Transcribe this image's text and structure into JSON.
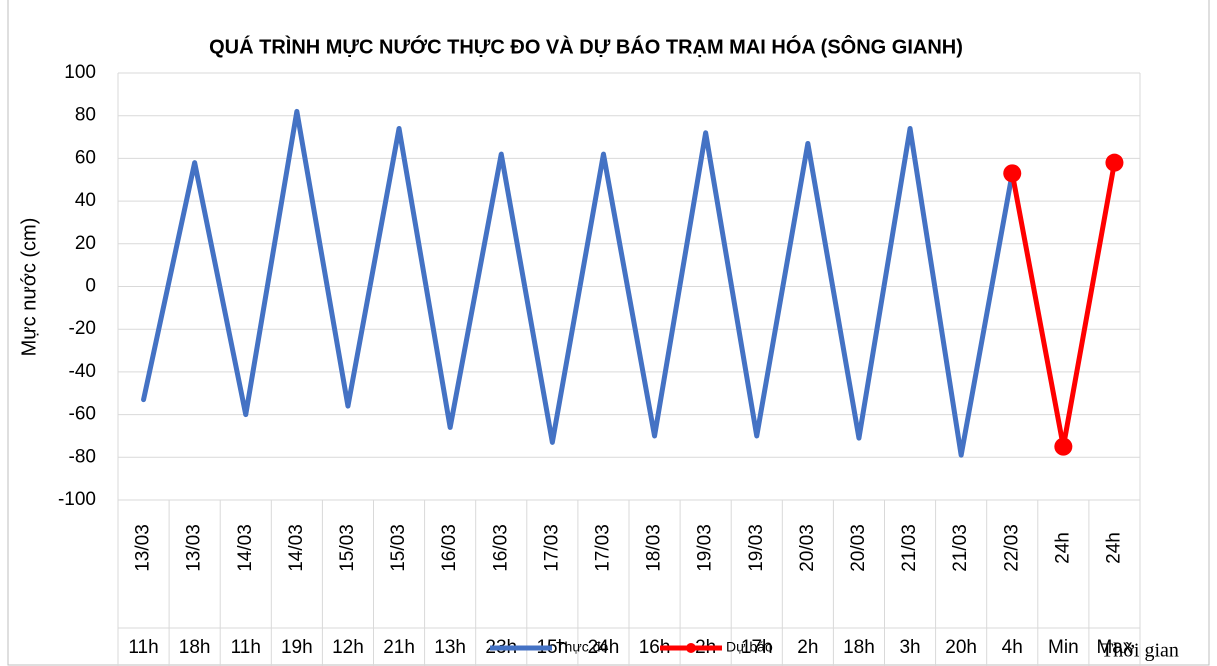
{
  "chart_data": {
    "type": "line",
    "title": "QUÁ TRÌNH MỰC NƯỚC THỰC ĐO VÀ DỰ BÁO TRẠM MAI HÓA (SÔNG GIANH)",
    "ylabel": "Mực nước (cm)",
    "xlabel": "Thời gian",
    "categories": [
      [
        "13/03",
        "11h"
      ],
      [
        "13/03",
        "18h"
      ],
      [
        "14/03",
        "11h"
      ],
      [
        "14/03",
        "19h"
      ],
      [
        "15/03",
        "12h"
      ],
      [
        "15/03",
        "21h"
      ],
      [
        "16/03",
        "13h"
      ],
      [
        "16/03",
        "23h"
      ],
      [
        "17/03",
        "15h"
      ],
      [
        "17/03",
        "24h"
      ],
      [
        "18/03",
        "16h"
      ],
      [
        "19/03",
        "2h"
      ],
      [
        "19/03",
        "17h"
      ],
      [
        "20/03",
        "2h"
      ],
      [
        "20/03",
        "18h"
      ],
      [
        "21/03",
        "3h"
      ],
      [
        "21/03",
        "20h"
      ],
      [
        "22/03",
        "4h"
      ],
      [
        "24h",
        "Min"
      ],
      [
        "24h",
        "Max"
      ]
    ],
    "series": [
      {
        "name": "Thực đo",
        "color": "#4472c4",
        "marker": false,
        "values": [
          -53,
          58,
          -60,
          82,
          -56,
          74,
          -66,
          62,
          -73,
          62,
          -70,
          72,
          -70,
          67,
          -71,
          74,
          -79,
          53,
          null,
          null
        ]
      },
      {
        "name": "Dự báo",
        "color": "#ff0000",
        "marker": true,
        "values": [
          null,
          null,
          null,
          null,
          null,
          null,
          null,
          null,
          null,
          null,
          null,
          null,
          null,
          null,
          null,
          null,
          null,
          53,
          -75,
          58
        ]
      }
    ],
    "ylim": [
      -100,
      100
    ],
    "yticks": [
      -100,
      -80,
      -60,
      -40,
      -20,
      0,
      20,
      40,
      60,
      80,
      100
    ],
    "grid": true,
    "legend": "bottom"
  }
}
